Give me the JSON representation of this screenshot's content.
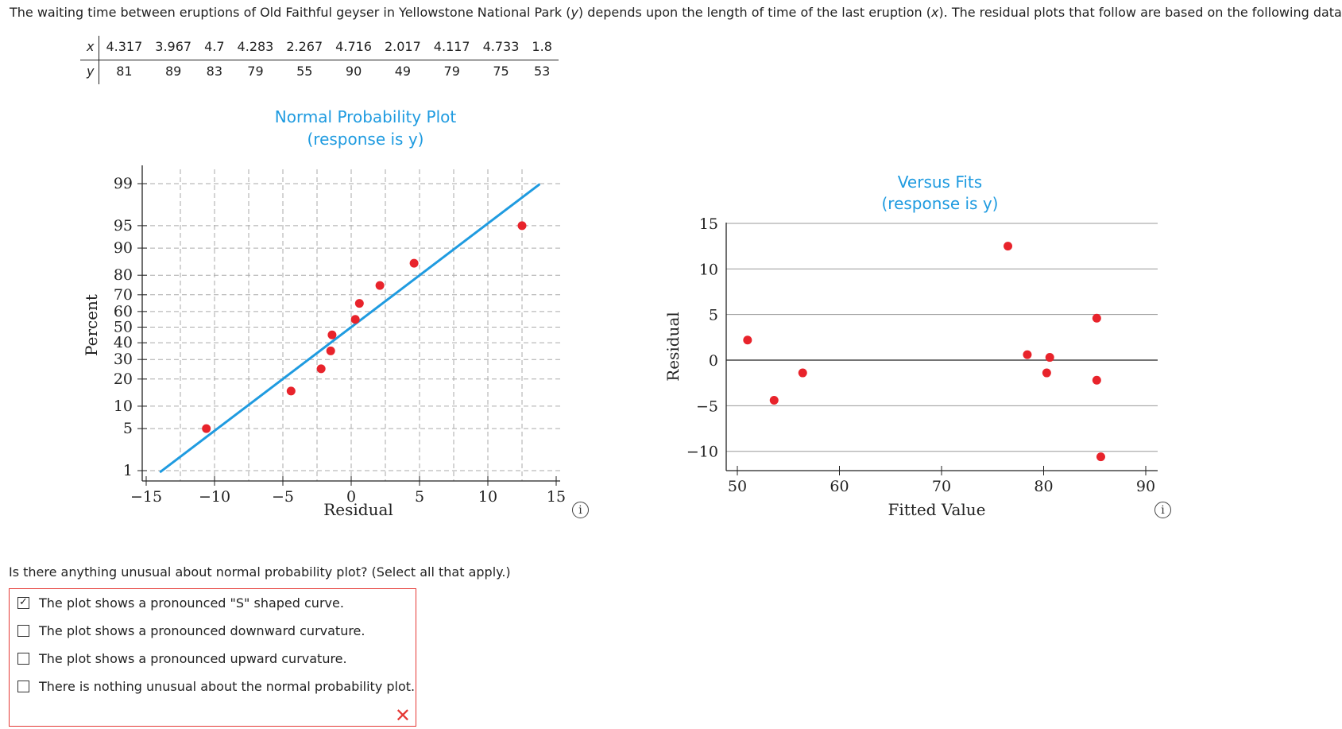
{
  "intro": {
    "prefix": "The waiting time between eruptions of Old Faithful geyser in Yellowstone National Park (",
    "y_var": "y",
    "middle": ") depends upon the length of time of the last eruption (",
    "x_var": "x",
    "suffix": "). The residual plots that follow are based on the following data.",
    "dagger": "†"
  },
  "data_table": {
    "x_label": "x",
    "y_label": "y",
    "x": [
      "4.317",
      "3.967",
      "4.7",
      "4.283",
      "2.267",
      "4.716",
      "2.017",
      "4.117",
      "4.733",
      "1.8"
    ],
    "y": [
      "81",
      "89",
      "83",
      "79",
      "55",
      "90",
      "49",
      "79",
      "75",
      "53"
    ]
  },
  "chart_data": [
    {
      "type": "scatter",
      "title": "Normal Probability Plot",
      "subtitle": "(response is y)",
      "xlabel": "Residual",
      "ylabel": "Percent",
      "xlim": [
        -15,
        15
      ],
      "x_ticks": [
        "-15",
        "-10",
        "-5",
        "0",
        "5",
        "10",
        "15"
      ],
      "y_ticks": [
        "1",
        "5",
        "10",
        "20",
        "30",
        "40",
        "50",
        "60",
        "70",
        "80",
        "90",
        "95",
        "99"
      ],
      "grid": true,
      "points": [
        {
          "x": -10.6,
          "y": 5
        },
        {
          "x": -4.4,
          "y": 15
        },
        {
          "x": -2.2,
          "y": 25
        },
        {
          "x": -1.5,
          "y": 35
        },
        {
          "x": -1.4,
          "y": 45
        },
        {
          "x": 0.3,
          "y": 55
        },
        {
          "x": 0.6,
          "y": 65
        },
        {
          "x": 2.1,
          "y": 75
        },
        {
          "x": 4.6,
          "y": 85
        },
        {
          "x": 12.5,
          "y": 95
        }
      ],
      "fit_line": {
        "x_start": -14,
        "x_end": 13.8
      }
    },
    {
      "type": "scatter",
      "title": "Versus Fits",
      "subtitle": "(response is y)",
      "xlabel": "Fitted Value",
      "ylabel": "Residual",
      "xlim": [
        49,
        91
      ],
      "ylim": [
        -12,
        15
      ],
      "x_ticks": [
        "50",
        "60",
        "70",
        "80",
        "90"
      ],
      "y_ticks": [
        "−10",
        "−5",
        "0",
        "5",
        "10",
        "15"
      ],
      "grid": true,
      "points": [
        {
          "x": 51,
          "y": 2.2
        },
        {
          "x": 53.6,
          "y": -4.4
        },
        {
          "x": 56.4,
          "y": -1.4
        },
        {
          "x": 76.5,
          "y": 12.5
        },
        {
          "x": 78.4,
          "y": 0.6
        },
        {
          "x": 80.3,
          "y": -1.4
        },
        {
          "x": 80.6,
          "y": 0.3
        },
        {
          "x": 85.2,
          "y": 4.6
        },
        {
          "x": 85.2,
          "y": -2.2
        },
        {
          "x": 85.6,
          "y": -10.6
        }
      ]
    }
  ],
  "question": "Is there anything unusual about normal probability plot? (Select all that apply.)",
  "options": [
    {
      "label": "The plot shows a pronounced \"S\" shaped curve.",
      "checked": true
    },
    {
      "label": "The plot shows a pronounced downward curvature.",
      "checked": false
    },
    {
      "label": "The plot shows a pronounced upward curvature.",
      "checked": false
    },
    {
      "label": "There is nothing unusual about the normal probability plot.",
      "checked": false
    }
  ],
  "info_icon_glyph": "i",
  "result_mark": "✕",
  "colors": {
    "accent": "#1f9be0",
    "point": "#e8232b",
    "error": "#e53935"
  }
}
